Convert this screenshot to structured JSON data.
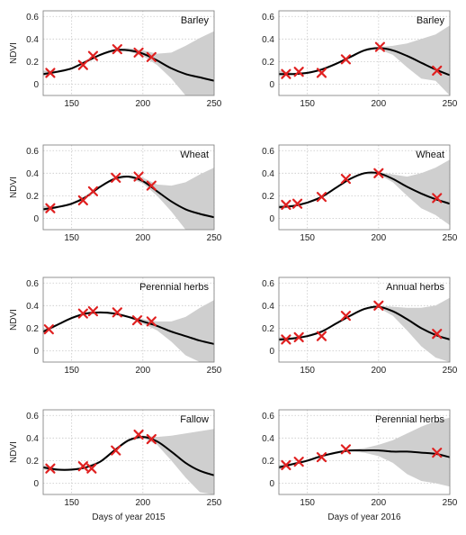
{
  "colors": {
    "band": "#cfcfcf",
    "line": "#000000",
    "marker": "#e02020",
    "grid": "#c8c8c8",
    "frame": "#888888"
  },
  "chart_data": [
    {
      "type": "line",
      "title": "Barley",
      "ylabel": "NDVI",
      "xlabel": "",
      "xlim": [
        130,
        250
      ],
      "ylim": [
        -0.1,
        0.65
      ],
      "xticks": [
        "150",
        "200",
        "250"
      ],
      "yticks": [
        "0",
        "0.2",
        "0.4",
        "0.6"
      ],
      "grid": true,
      "observations": {
        "x": [
          135,
          158,
          165,
          182,
          197,
          206
        ],
        "y": [
          0.1,
          0.17,
          0.25,
          0.31,
          0.28,
          0.24
        ]
      },
      "fit": {
        "x": [
          130,
          140,
          150,
          160,
          170,
          180,
          190,
          200,
          210,
          220,
          230,
          240,
          250
        ],
        "y": [
          0.09,
          0.11,
          0.14,
          0.2,
          0.26,
          0.3,
          0.3,
          0.27,
          0.21,
          0.14,
          0.09,
          0.06,
          0.03
        ]
      },
      "band": {
        "lower": [
          0.07,
          0.1,
          0.13,
          0.19,
          0.25,
          0.29,
          0.29,
          0.25,
          0.17,
          0.05,
          -0.1,
          -0.1,
          -0.1
        ],
        "upper": [
          0.12,
          0.12,
          0.15,
          0.21,
          0.27,
          0.31,
          0.32,
          0.3,
          0.27,
          0.28,
          0.34,
          0.41,
          0.47
        ]
      }
    },
    {
      "type": "line",
      "title": "Barley",
      "ylabel": "",
      "xlabel": "",
      "xlim": [
        130,
        250
      ],
      "ylim": [
        -0.1,
        0.65
      ],
      "xticks": [
        "150",
        "200",
        "250"
      ],
      "yticks": [
        "0",
        "0.2",
        "0.4",
        "0.6"
      ],
      "grid": true,
      "observations": {
        "x": [
          135,
          144,
          160,
          177,
          201,
          241
        ],
        "y": [
          0.09,
          0.11,
          0.1,
          0.22,
          0.33,
          0.12
        ]
      },
      "fit": {
        "x": [
          130,
          140,
          150,
          160,
          170,
          180,
          190,
          200,
          210,
          220,
          230,
          240,
          250
        ],
        "y": [
          0.09,
          0.09,
          0.1,
          0.13,
          0.18,
          0.24,
          0.3,
          0.32,
          0.3,
          0.25,
          0.19,
          0.13,
          0.08
        ]
      },
      "band": {
        "lower": [
          0.07,
          0.08,
          0.09,
          0.12,
          0.17,
          0.23,
          0.29,
          0.31,
          0.26,
          0.15,
          0.05,
          0.03,
          -0.1
        ],
        "upper": [
          0.12,
          0.1,
          0.11,
          0.14,
          0.19,
          0.25,
          0.31,
          0.33,
          0.34,
          0.36,
          0.4,
          0.44,
          0.52
        ]
      }
    },
    {
      "type": "line",
      "title": "Wheat",
      "ylabel": "NDVI",
      "xlabel": "",
      "xlim": [
        130,
        250
      ],
      "ylim": [
        -0.1,
        0.65
      ],
      "xticks": [
        "150",
        "200",
        "250"
      ],
      "yticks": [
        "0",
        "0.2",
        "0.4",
        "0.6"
      ],
      "grid": true,
      "observations": {
        "x": [
          135,
          158,
          165,
          181,
          197,
          206
        ],
        "y": [
          0.09,
          0.16,
          0.24,
          0.36,
          0.37,
          0.29
        ]
      },
      "fit": {
        "x": [
          130,
          140,
          150,
          160,
          170,
          180,
          190,
          200,
          210,
          220,
          230,
          240,
          250
        ],
        "y": [
          0.08,
          0.1,
          0.13,
          0.19,
          0.28,
          0.35,
          0.37,
          0.33,
          0.24,
          0.15,
          0.08,
          0.04,
          0.01
        ]
      },
      "band": {
        "lower": [
          0.06,
          0.09,
          0.12,
          0.18,
          0.27,
          0.34,
          0.36,
          0.31,
          0.2,
          0.06,
          -0.1,
          -0.1,
          -0.1
        ],
        "upper": [
          0.11,
          0.11,
          0.14,
          0.2,
          0.29,
          0.36,
          0.38,
          0.36,
          0.3,
          0.29,
          0.32,
          0.39,
          0.45
        ]
      }
    },
    {
      "type": "line",
      "title": "Wheat",
      "ylabel": "",
      "xlabel": "",
      "xlim": [
        130,
        250
      ],
      "ylim": [
        -0.1,
        0.65
      ],
      "xticks": [
        "150",
        "200",
        "250"
      ],
      "yticks": [
        "0",
        "0.2",
        "0.4",
        "0.6"
      ],
      "grid": true,
      "observations": {
        "x": [
          135,
          143,
          160,
          177,
          200,
          241
        ],
        "y": [
          0.12,
          0.13,
          0.19,
          0.35,
          0.4,
          0.18
        ]
      },
      "fit": {
        "x": [
          130,
          140,
          150,
          160,
          170,
          180,
          190,
          200,
          210,
          220,
          230,
          240,
          250
        ],
        "y": [
          0.1,
          0.11,
          0.14,
          0.19,
          0.27,
          0.35,
          0.4,
          0.4,
          0.35,
          0.28,
          0.22,
          0.17,
          0.13
        ]
      },
      "band": {
        "lower": [
          0.08,
          0.1,
          0.13,
          0.18,
          0.26,
          0.34,
          0.39,
          0.39,
          0.32,
          0.2,
          0.09,
          0.03,
          -0.06
        ],
        "upper": [
          0.12,
          0.12,
          0.15,
          0.2,
          0.28,
          0.36,
          0.41,
          0.41,
          0.39,
          0.37,
          0.4,
          0.45,
          0.52
        ]
      }
    },
    {
      "type": "line",
      "title": "Perennial herbs",
      "ylabel": "NDVI",
      "xlabel": "",
      "xlim": [
        130,
        250
      ],
      "ylim": [
        -0.1,
        0.65
      ],
      "xticks": [
        "150",
        "200",
        "250"
      ],
      "yticks": [
        "0",
        "0.2",
        "0.4",
        "0.6"
      ],
      "grid": true,
      "observations": {
        "x": [
          134,
          158,
          165,
          182,
          196,
          206
        ],
        "y": [
          0.19,
          0.33,
          0.35,
          0.34,
          0.27,
          0.26
        ]
      },
      "fit": {
        "x": [
          130,
          140,
          150,
          160,
          170,
          180,
          190,
          200,
          210,
          220,
          230,
          240,
          250
        ],
        "y": [
          0.17,
          0.23,
          0.29,
          0.33,
          0.34,
          0.33,
          0.3,
          0.26,
          0.22,
          0.17,
          0.13,
          0.09,
          0.06
        ]
      },
      "band": {
        "lower": [
          0.15,
          0.22,
          0.28,
          0.32,
          0.33,
          0.32,
          0.29,
          0.24,
          0.18,
          0.08,
          -0.04,
          -0.1,
          -0.1
        ],
        "upper": [
          0.19,
          0.24,
          0.3,
          0.34,
          0.35,
          0.34,
          0.31,
          0.28,
          0.26,
          0.26,
          0.3,
          0.38,
          0.45
        ]
      }
    },
    {
      "type": "line",
      "title": "Annual herbs",
      "ylabel": "",
      "xlabel": "",
      "xlim": [
        130,
        250
      ],
      "ylim": [
        -0.1,
        0.65
      ],
      "xticks": [
        "150",
        "200",
        "250"
      ],
      "yticks": [
        "0",
        "0.2",
        "0.4",
        "0.6"
      ],
      "grid": true,
      "observations": {
        "x": [
          135,
          144,
          160,
          177,
          200,
          241
        ],
        "y": [
          0.1,
          0.12,
          0.13,
          0.31,
          0.4,
          0.15
        ]
      },
      "fit": {
        "x": [
          130,
          140,
          150,
          160,
          170,
          180,
          190,
          200,
          210,
          220,
          230,
          240,
          250
        ],
        "y": [
          0.1,
          0.11,
          0.13,
          0.17,
          0.24,
          0.31,
          0.37,
          0.39,
          0.35,
          0.28,
          0.2,
          0.14,
          0.1
        ]
      },
      "band": {
        "lower": [
          0.08,
          0.1,
          0.12,
          0.16,
          0.23,
          0.3,
          0.36,
          0.38,
          0.31,
          0.18,
          0.04,
          -0.06,
          -0.1
        ],
        "upper": [
          0.12,
          0.12,
          0.14,
          0.18,
          0.25,
          0.32,
          0.38,
          0.4,
          0.39,
          0.38,
          0.38,
          0.4,
          0.47
        ]
      }
    },
    {
      "type": "line",
      "title": "Fallow",
      "ylabel": "NDVI",
      "xlabel": "Days of year 2015",
      "xlim": [
        130,
        250
      ],
      "ylim": [
        -0.1,
        0.65
      ],
      "xticks": [
        "150",
        "200",
        "250"
      ],
      "yticks": [
        "0",
        "0.2",
        "0.4",
        "0.6"
      ],
      "grid": true,
      "observations": {
        "x": [
          135,
          158,
          164,
          181,
          197,
          206
        ],
        "y": [
          0.13,
          0.15,
          0.13,
          0.29,
          0.43,
          0.39
        ]
      },
      "fit": {
        "x": [
          130,
          140,
          150,
          160,
          170,
          180,
          190,
          200,
          210,
          220,
          230,
          240,
          250
        ],
        "y": [
          0.14,
          0.12,
          0.12,
          0.14,
          0.19,
          0.29,
          0.38,
          0.41,
          0.37,
          0.28,
          0.18,
          0.11,
          0.07
        ]
      },
      "band": {
        "lower": [
          0.12,
          0.11,
          0.11,
          0.13,
          0.18,
          0.28,
          0.37,
          0.4,
          0.34,
          0.2,
          0.05,
          -0.08,
          -0.1
        ],
        "upper": [
          0.16,
          0.13,
          0.13,
          0.15,
          0.2,
          0.3,
          0.39,
          0.42,
          0.41,
          0.42,
          0.44,
          0.46,
          0.48
        ]
      }
    },
    {
      "type": "line",
      "title": "Perennial herbs",
      "ylabel": "",
      "xlabel": "Days of year 2016",
      "xlim": [
        130,
        250
      ],
      "ylim": [
        -0.1,
        0.65
      ],
      "xticks": [
        "150",
        "200",
        "250"
      ],
      "yticks": [
        "0",
        "0.2",
        "0.4",
        "0.6"
      ],
      "grid": true,
      "observations": {
        "x": [
          135,
          144,
          160,
          177,
          241
        ],
        "y": [
          0.16,
          0.19,
          0.23,
          0.3,
          0.27
        ]
      },
      "fit": {
        "x": [
          130,
          140,
          150,
          160,
          170,
          180,
          190,
          200,
          210,
          220,
          230,
          240,
          250
        ],
        "y": [
          0.14,
          0.17,
          0.2,
          0.24,
          0.27,
          0.29,
          0.29,
          0.29,
          0.28,
          0.28,
          0.27,
          0.26,
          0.23
        ]
      },
      "band": {
        "lower": [
          0.12,
          0.16,
          0.19,
          0.23,
          0.26,
          0.28,
          0.27,
          0.24,
          0.18,
          0.08,
          0.02,
          0.0,
          -0.03
        ],
        "upper": [
          0.16,
          0.18,
          0.21,
          0.25,
          0.28,
          0.3,
          0.31,
          0.34,
          0.38,
          0.44,
          0.5,
          0.55,
          0.58
        ]
      }
    }
  ]
}
